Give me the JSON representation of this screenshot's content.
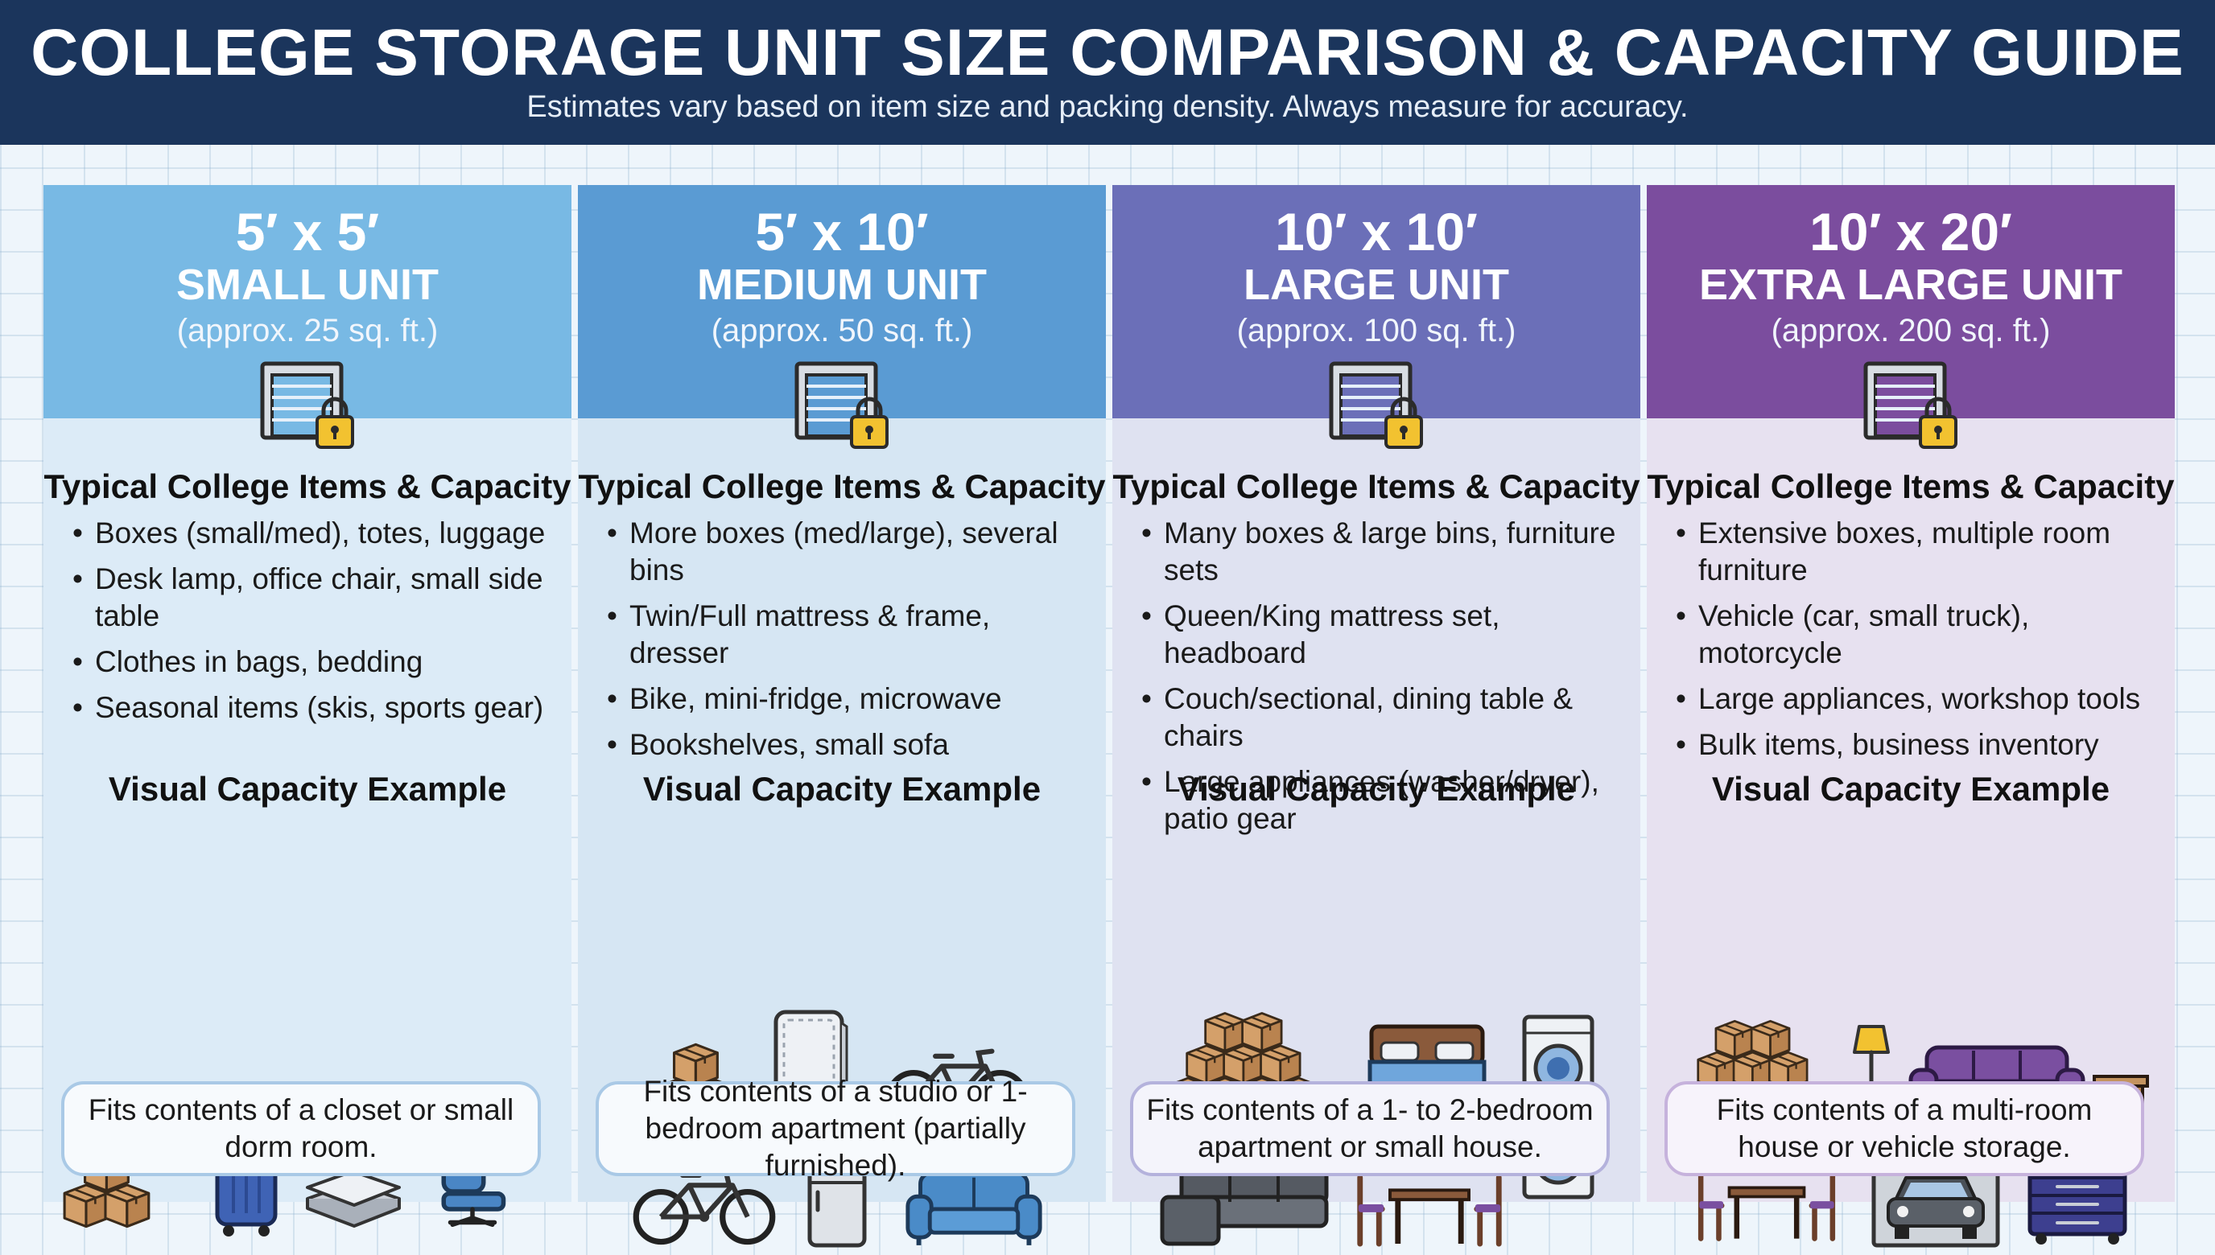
{
  "header": {
    "title": "COLLEGE STORAGE UNIT SIZE COMPARISON & CAPACITY GUIDE",
    "subtitle": "Estimates vary based on item size and packing density. Always measure for accuracy."
  },
  "section_labels": {
    "items_title": "Typical College Items & Capacity",
    "visual_title": "Visual Capacity Example"
  },
  "units": [
    {
      "dimensions": "5′ x 5′",
      "name": "SMALL UNIT",
      "area": "(approx. 25 sq. ft.)",
      "header_color": "#78b9e4",
      "items": [
        "Boxes (small/med), totes, luggage",
        "Desk lamp, office chair, small side table",
        "Clothes in bags, bedding",
        "Seasonal items (skis, sports gear)"
      ],
      "visual_icons": [
        "boxes-icon",
        "luggage-icon",
        "bedding-icon",
        "office-chair-icon"
      ],
      "fits": "Fits contents of a closet or small dorm room."
    },
    {
      "dimensions": "5′ x 10′",
      "name": "MEDIUM UNIT",
      "area": "(approx. 50 sq. ft.)",
      "header_color": "#5a9bd3",
      "items": [
        "More boxes (med/large), several bins",
        "Twin/Full mattress & frame, dresser",
        "Bike, mini-fridge, microwave",
        "Bookshelves, small sofa"
      ],
      "visual_icons": [
        "boxes-icon",
        "mattress-icon",
        "bike-icon",
        "bike-icon",
        "mini-fridge-icon",
        "sofa-icon"
      ],
      "fits": "Fits contents of a studio or 1-bedroom apartment (partially furnished)."
    },
    {
      "dimensions": "10′ x 10′",
      "name": "LARGE UNIT",
      "area": "(approx. 100 sq. ft.)",
      "header_color": "#6b6fb8",
      "items": [
        "Many boxes & large bins, furniture sets",
        "Queen/King mattress set, headboard",
        "Couch/sectional, dining table & chairs",
        "Large appliances (washer/dryer), patio gear"
      ],
      "visual_icons": [
        "boxes-icon",
        "bed-icon",
        "washer-dryer-icon",
        "sectional-icon",
        "dining-set-icon"
      ],
      "fits": "Fits contents of a 1- to 2-bedroom apartment or small house."
    },
    {
      "dimensions": "10′ x 20′",
      "name": "EXTRA LARGE UNIT",
      "area": "(approx. 200 sq. ft.)",
      "header_color": "#7b4d9e",
      "items": [
        "Extensive boxes, multiple room furniture",
        "Vehicle (car, small truck), motorcycle",
        "Large appliances, workshop tools",
        "Bulk items, business inventory"
      ],
      "visual_icons": [
        "boxes-icon",
        "floor-lamp-icon",
        "sofa-icon",
        "coffee-table-icon",
        "side-table-icon",
        "dining-set-icon",
        "car-icon",
        "tool-chest-icon"
      ],
      "fits": "Fits contents of a multi-room house or vehicle storage."
    }
  ]
}
